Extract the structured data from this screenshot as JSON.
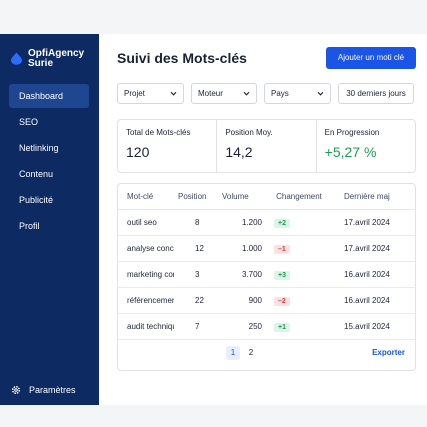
{
  "brand": {
    "line1": "OpfiAgency",
    "line2": "Surie"
  },
  "sidebar": {
    "items": [
      {
        "label": "Dashboard",
        "active": true
      },
      {
        "label": "SEO"
      },
      {
        "label": "Netlinking"
      },
      {
        "label": "Contenu"
      },
      {
        "label": "Publicité"
      },
      {
        "label": "Profil"
      }
    ],
    "settings_label": "Paramètres"
  },
  "header": {
    "title": "Suivi des Mots-clés",
    "add_button": "Ajouter un moti clé"
  },
  "filters": {
    "projet": "Projet",
    "moteur": "Moteur",
    "pays": "Pays",
    "period": "30 derniers jours"
  },
  "stats": [
    {
      "label": "Total de Mots-clés",
      "value": "120"
    },
    {
      "label": "Position Moy.",
      "value": "14,2"
    },
    {
      "label": "En Progression",
      "value": "+5,27 %"
    }
  ],
  "table": {
    "headers": [
      "Mot-clé",
      "Position",
      "Volume",
      "Changement",
      "Dernière maj"
    ],
    "rows": [
      {
        "keyword": "outil seo",
        "position": "8",
        "volume": "1.200",
        "change": "+2",
        "dir": "up",
        "date": "17.avril 2024"
      },
      {
        "keyword": "analyse concu...",
        "position": "12",
        "volume": "1.000",
        "change": "–1",
        "dir": "down",
        "date": "17.avril 2024"
      },
      {
        "keyword": "marketing conte...",
        "position": "3",
        "volume": "3.700",
        "change": "+3",
        "dir": "up",
        "date": "16.avril 2024"
      },
      {
        "keyword": "référencement n",
        "position": "22",
        "volume": "900",
        "change": "–2",
        "dir": "down",
        "date": "16.avril 2024"
      },
      {
        "keyword": "audit technique",
        "position": "7",
        "volume": "250",
        "change": "+1",
        "dir": "up",
        "date": "15.avril 2024"
      }
    ]
  },
  "pagination": {
    "pages": [
      "1",
      "2"
    ],
    "export_label": "Exporter"
  },
  "colors": {
    "sidebar": "#0d2a63",
    "accent": "#1a55e8",
    "positive": "#1e9b57",
    "negative": "#d33b3b"
  },
  "icons": {
    "logo": "brand-drop-icon",
    "settings": "gear-icon",
    "dropdown": "chevron-down-icon"
  }
}
